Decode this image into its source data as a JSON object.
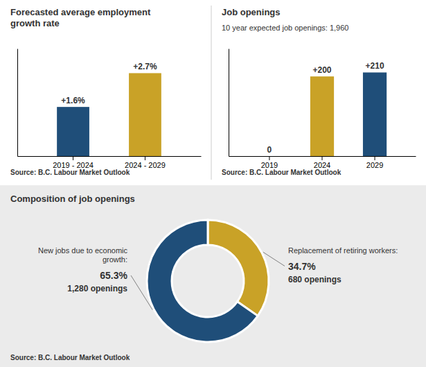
{
  "chart_data": [
    {
      "type": "bar",
      "title": "Forecasted average employment\ngrowth rate",
      "categories": [
        "2019 - 2024",
        "2024 - 2029"
      ],
      "values": [
        1.6,
        2.7
      ],
      "value_labels": [
        "+1.6%",
        "+2.7%"
      ],
      "colors": [
        "#1f4e79",
        "#c9a227"
      ],
      "ylim": [
        0,
        3.5
      ],
      "tick_labels": "x",
      "data_labels": true,
      "annotations": [
        "Source: B.C. Labour Market Outlook"
      ]
    },
    {
      "type": "bar",
      "title": "Job openings",
      "subtitle": "10 year expected job openings: 1,960",
      "categories": [
        "2019",
        "2024",
        "2029"
      ],
      "values": [
        0,
        200,
        210
      ],
      "value_labels": [
        "0",
        "+200",
        "+210"
      ],
      "colors": [
        "#ffffff",
        "#c9a227",
        "#1f4e79"
      ],
      "ylim": [
        0,
        270
      ],
      "tick_labels": "x",
      "data_labels": true,
      "annotations": [
        "Source: B.C. Labour Market Outlook"
      ]
    },
    {
      "type": "pie",
      "title": "Composition of job openings",
      "categories": [
        "Replacement of retiring workers:",
        "New jobs due to economic\ngrowth:"
      ],
      "values": [
        34.7,
        65.3
      ],
      "value_labels": [
        "34.7%",
        "65.3%"
      ],
      "colors": [
        "#c9a227",
        "#1f4e79"
      ],
      "counts": [
        680,
        1280
      ],
      "count_labels": [
        "680 openings",
        "1,280 openings"
      ],
      "annotations": [
        "Source: B.C. Labour Market Outlook"
      ]
    }
  ]
}
